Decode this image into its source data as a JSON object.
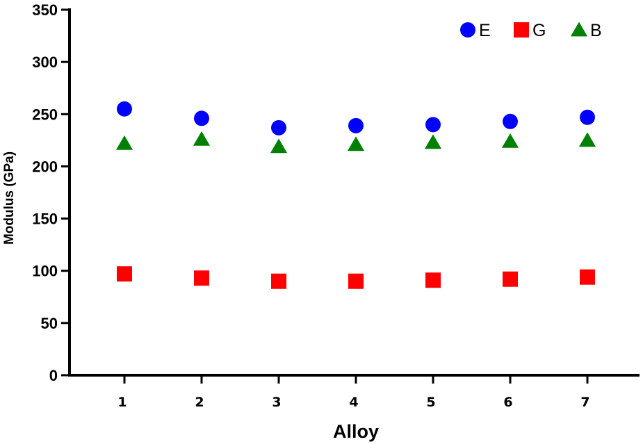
{
  "chart_data": {
    "type": "scatter",
    "title": "",
    "xlabel": "Alloy",
    "ylabel": "Modulus (GPa)",
    "categories": [
      "1",
      "2",
      "3",
      "4",
      "5",
      "6",
      "7"
    ],
    "ylim": [
      0,
      350
    ],
    "yticks": [
      0,
      50,
      100,
      150,
      200,
      250,
      300,
      350
    ],
    "grid": false,
    "legend_position": "top-right",
    "series": [
      {
        "name": "E",
        "marker": "circle",
        "color": "#0000ff",
        "values": [
          255,
          246,
          237,
          239,
          240,
          243,
          247
        ]
      },
      {
        "name": "G",
        "marker": "square",
        "color": "#ff0000",
        "values": [
          97,
          93,
          90,
          90,
          91,
          92,
          94
        ]
      },
      {
        "name": "B",
        "marker": "triangle",
        "color": "#008000",
        "values": [
          222,
          226,
          219,
          221,
          223,
          224,
          225
        ]
      }
    ]
  }
}
